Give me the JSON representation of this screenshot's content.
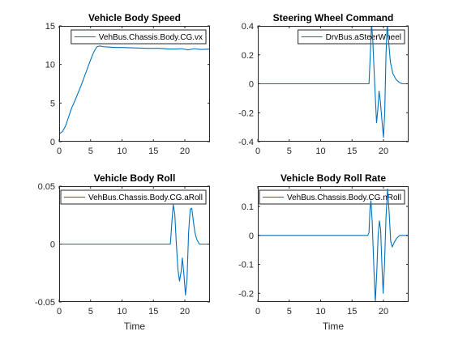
{
  "figure": {
    "background": "#ffffff",
    "line_color": "#0072bd",
    "axis_color": "#262626"
  },
  "chart_data": [
    {
      "type": "line",
      "title": "Vehicle Body Speed",
      "xlabel": "",
      "ylabel": "",
      "xlim": [
        0,
        24
      ],
      "ylim": [
        0,
        15
      ],
      "xticks": [
        0,
        5,
        10,
        15,
        20
      ],
      "yticks": [
        0,
        5,
        10,
        15
      ],
      "legend_position": "top-right",
      "series": [
        {
          "name": "VehBus.Chassis.Body.CG.vx",
          "x": [
            0,
            0.5,
            1.0,
            1.5,
            2.0,
            2.5,
            3.0,
            3.5,
            4.0,
            4.5,
            5.0,
            5.5,
            6.0,
            6.5,
            7.0,
            8.0,
            9.0,
            10.0,
            12.0,
            14.0,
            16.0,
            17.5,
            18.5,
            19.5,
            20.5,
            21.5,
            22.5,
            24.0
          ],
          "y": [
            1.0,
            1.3,
            2.0,
            3.2,
            4.4,
            5.3,
            6.3,
            7.3,
            8.4,
            9.5,
            10.6,
            11.6,
            12.3,
            12.4,
            12.3,
            12.25,
            12.2,
            12.2,
            12.15,
            12.1,
            12.1,
            12.0,
            12.0,
            12.05,
            11.9,
            12.05,
            11.95,
            12.0
          ]
        }
      ]
    },
    {
      "type": "line",
      "title": "Steering Wheel Command",
      "xlabel": "",
      "ylabel": "",
      "xlim": [
        0,
        24
      ],
      "ylim": [
        -0.4,
        0.4
      ],
      "xticks": [
        0,
        5,
        10,
        15,
        20
      ],
      "yticks": [
        -0.4,
        -0.2,
        0,
        0.2,
        0.4
      ],
      "legend_position": "top-right",
      "series": [
        {
          "name": "DrvBus.aSteerWheel",
          "x": [
            0,
            10,
            17.7,
            17.95,
            18.1,
            18.3,
            18.6,
            18.9,
            19.1,
            19.3,
            19.5,
            19.75,
            20.0,
            20.2,
            20.4,
            20.6,
            20.85,
            21.1,
            21.5,
            22.0,
            22.5,
            23.0,
            24.0
          ],
          "y": [
            0,
            0,
            0,
            0.25,
            0.42,
            0.3,
            0.0,
            -0.27,
            -0.18,
            -0.05,
            -0.12,
            -0.25,
            -0.37,
            -0.2,
            0.2,
            0.41,
            0.28,
            0.15,
            0.07,
            0.03,
            0.01,
            0.0,
            0.0
          ]
        }
      ]
    },
    {
      "type": "line",
      "title": "Vehicle Body Roll",
      "xlabel": "Time",
      "ylabel": "",
      "xlim": [
        0,
        24
      ],
      "ylim": [
        -0.05,
        0.05
      ],
      "xticks": [
        0,
        5,
        10,
        15,
        20
      ],
      "yticks": [
        -0.05,
        0,
        0.05
      ],
      "legend_position": "top-right",
      "series": [
        {
          "name": "VehBus.Chassis.Body.CG.aRoll",
          "x": [
            0,
            10,
            17.7,
            17.95,
            18.15,
            18.4,
            18.65,
            18.9,
            19.15,
            19.4,
            19.6,
            19.85,
            20.1,
            20.35,
            20.6,
            20.85,
            21.1,
            21.35,
            21.6,
            21.9,
            22.3,
            22.8,
            23.3,
            24.0
          ],
          "y": [
            0,
            0,
            0,
            0.02,
            0.034,
            0.026,
            0.0,
            -0.022,
            -0.032,
            -0.024,
            -0.012,
            -0.026,
            -0.044,
            -0.03,
            0.01,
            0.03,
            0.031,
            0.02,
            0.01,
            0.004,
            0.0,
            0.0,
            0.0,
            0.0
          ]
        }
      ]
    },
    {
      "type": "line",
      "title": "Vehicle Body Roll Rate",
      "xlabel": "Time",
      "ylabel": "",
      "xlim": [
        0,
        24
      ],
      "ylim": [
        -0.23,
        0.17
      ],
      "xticks": [
        0,
        5,
        10,
        15,
        20
      ],
      "yticks": [
        -0.2,
        -0.1,
        0,
        0.1
      ],
      "legend_position": "top-right",
      "series": [
        {
          "name": "VehBus.Chassis.Body.CG.nRoll",
          "x": [
            0,
            10,
            17.5,
            17.7,
            17.85,
            18.0,
            18.2,
            18.45,
            18.7,
            18.95,
            19.15,
            19.35,
            19.55,
            19.75,
            19.95,
            20.15,
            20.4,
            20.65,
            20.9,
            21.15,
            21.4,
            21.7,
            22.1,
            22.6,
            23.2,
            24.0
          ],
          "y": [
            0,
            0,
            0,
            0.01,
            0.09,
            0.12,
            0.05,
            -0.1,
            -0.23,
            -0.12,
            0.0,
            0.05,
            0.02,
            -0.1,
            -0.2,
            -0.11,
            0.06,
            0.16,
            0.08,
            -0.02,
            -0.04,
            -0.025,
            -0.01,
            0.0,
            0.0,
            0.0
          ]
        }
      ]
    }
  ]
}
